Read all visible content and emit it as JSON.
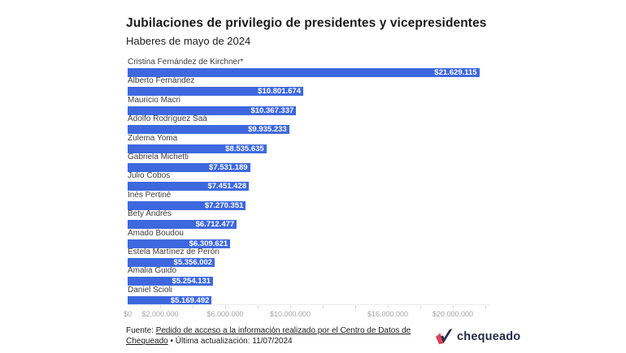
{
  "header": {
    "title": "Jubilaciones de privilegio de presidentes y vicepresidentes",
    "subtitle": "Haberes de mayo de 2024"
  },
  "chart_data": {
    "type": "bar",
    "orientation": "horizontal",
    "title": "Jubilaciones de privilegio de presidentes y vicepresidentes",
    "subtitle": "Haberes de mayo de 2024",
    "categories": [
      "Cristina Fernández de Kirchner*",
      "Alberto Fernández",
      "Mauricio Macri",
      "Adolfo Rodríguez Saá",
      "Zulema Yoma",
      "Gabriela Michetti",
      "Julio Cobos",
      "Inés Pertiné",
      "Bety Andrés",
      "Amado Boudou",
      "Estela Martínez de Perón",
      "Amalia Guido",
      "Daniel Scioli"
    ],
    "values": [
      21629115,
      10801674,
      10367337,
      9935233,
      8535635,
      7531189,
      7451428,
      7270351,
      6712477,
      6309621,
      5356002,
      5254131,
      5169492
    ],
    "value_labels": [
      "$21.629.115",
      "$10.801.674",
      "$10.367.337",
      "$9.935.233",
      "$8.535.635",
      "$7.531.189",
      "$7.451.428",
      "$7.270.351",
      "$6.712.477",
      "$6.309.621",
      "$5.356.002",
      "$5.254.131",
      "$5.169.492"
    ],
    "xlim": [
      0,
      22000000
    ],
    "grid": false,
    "legend": "none",
    "bar_color": "#3e68de",
    "axis_ticks": [
      {
        "value": 0,
        "label": "$0"
      },
      {
        "value": 2000000,
        "label": "$2.000.000"
      },
      {
        "value": 4000000,
        "label": ""
      },
      {
        "value": 6000000,
        "label": "$6.000.000"
      },
      {
        "value": 8000000,
        "label": ""
      },
      {
        "value": 10000000,
        "label": "$10.000.000"
      },
      {
        "value": 12000000,
        "label": ""
      },
      {
        "value": 14000000,
        "label": ""
      },
      {
        "value": 16000000,
        "label": "$16.000.000"
      },
      {
        "value": 18000000,
        "label": ""
      },
      {
        "value": 20000000,
        "label": "$20.000.000"
      },
      {
        "value": 22000000,
        "label": ""
      }
    ]
  },
  "footer": {
    "source_prefix": "Fuente: ",
    "source_link": "Pedido de acceso a la información realizado por el Centro de Datos de Chequeado",
    "source_suffix": " • Última actualización: 11/07/2024",
    "logo_text": "chequeado",
    "logo_navy": "#262c49",
    "logo_red": "#df3f55"
  }
}
